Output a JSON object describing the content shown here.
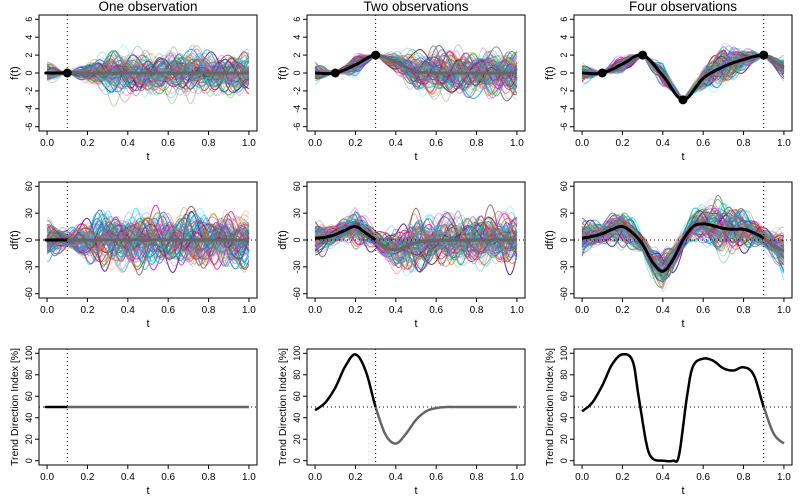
{
  "chart_data": [
    {
      "type": "line",
      "row": 1,
      "col": 1,
      "title": "One observation",
      "xlabel": "t",
      "ylabel": "f(t)",
      "xlim": [
        0,
        1
      ],
      "ylim": [
        -6,
        6
      ],
      "xticks": [
        "0.0",
        "0.2",
        "0.4",
        "0.6",
        "0.8",
        "1.0"
      ],
      "yticks": [
        "-6",
        "-4",
        "-2",
        "0",
        "2",
        "4",
        "6"
      ],
      "observations": {
        "x": [
          0.1
        ],
        "y": [
          0
        ]
      },
      "vline": 0.1,
      "mean": {
        "x": [
          0,
          0.1,
          1.0
        ],
        "y": [
          0,
          0,
          0
        ]
      },
      "samples": "many colored posterior sample paths"
    },
    {
      "type": "line",
      "row": 1,
      "col": 2,
      "title": "Two observations",
      "xlabel": "t",
      "ylabel": "f(t)",
      "xlim": [
        0,
        1
      ],
      "ylim": [
        -6,
        6
      ],
      "xticks": [
        "0.0",
        "0.2",
        "0.4",
        "0.6",
        "0.8",
        "1.0"
      ],
      "yticks": [
        "-6",
        "-4",
        "-2",
        "0",
        "2",
        "4",
        "6"
      ],
      "observations": {
        "x": [
          0.1,
          0.3
        ],
        "y": [
          0,
          2
        ]
      },
      "vline": 0.3,
      "mean": {
        "x": [
          0,
          0.1,
          0.2,
          0.3,
          0.4,
          0.5,
          0.6,
          1.0
        ],
        "y": [
          0,
          0,
          0.9,
          2,
          1.2,
          0.2,
          0,
          0
        ]
      },
      "samples": "many colored posterior sample paths"
    },
    {
      "type": "line",
      "row": 1,
      "col": 3,
      "title": "Four observations",
      "xlabel": "t",
      "ylabel": "f(t)",
      "xlim": [
        0,
        1
      ],
      "ylim": [
        -6,
        6
      ],
      "xticks": [
        "0.0",
        "0.2",
        "0.4",
        "0.6",
        "0.8",
        "1.0"
      ],
      "yticks": [
        "-6",
        "-4",
        "-2",
        "0",
        "2",
        "4",
        "6"
      ],
      "observations": {
        "x": [
          0.1,
          0.3,
          0.5,
          0.9
        ],
        "y": [
          0,
          2,
          -3,
          2
        ]
      },
      "vline": 0.9,
      "mean": {
        "x": [
          0,
          0.1,
          0.2,
          0.3,
          0.4,
          0.5,
          0.6,
          0.7,
          0.8,
          0.9,
          0.95,
          1.0
        ],
        "y": [
          0,
          0,
          1.0,
          2,
          -0.3,
          -3,
          -0.6,
          0.7,
          1.5,
          2,
          1.3,
          0.6
        ]
      },
      "samples": "many colored posterior sample paths"
    },
    {
      "type": "line",
      "row": 2,
      "col": 1,
      "xlabel": "t",
      "ylabel": "df(t)",
      "xlim": [
        0,
        1
      ],
      "ylim": [
        -60,
        60
      ],
      "xticks": [
        "0.0",
        "0.2",
        "0.4",
        "0.6",
        "0.8",
        "1.0"
      ],
      "yticks": [
        "-60",
        "-30",
        "0",
        "30",
        "60"
      ],
      "vline": 0.1,
      "zero_line": true,
      "mean": {
        "x": [
          0,
          0.1,
          1.0
        ],
        "y": [
          0,
          0,
          0
        ]
      },
      "samples": "many colored derivative sample paths"
    },
    {
      "type": "line",
      "row": 2,
      "col": 2,
      "xlabel": "t",
      "ylabel": "df(t)",
      "xlim": [
        0,
        1
      ],
      "ylim": [
        -60,
        60
      ],
      "xticks": [
        "0.0",
        "0.2",
        "0.4",
        "0.6",
        "0.8",
        "1.0"
      ],
      "yticks": [
        "-60",
        "-30",
        "0",
        "30",
        "60"
      ],
      "vline": 0.3,
      "zero_line": true,
      "mean": {
        "x": [
          0,
          0.05,
          0.1,
          0.15,
          0.2,
          0.25,
          0.3,
          0.35,
          0.4,
          0.45,
          0.5,
          0.6,
          1.0
        ],
        "y": [
          2,
          3,
          6,
          11,
          15,
          8,
          0,
          -8,
          -11,
          -7,
          -3,
          -0.5,
          0
        ]
      },
      "samples": "many colored derivative sample paths"
    },
    {
      "type": "line",
      "row": 2,
      "col": 3,
      "xlabel": "t",
      "ylabel": "df(t)",
      "xlim": [
        0,
        1
      ],
      "ylim": [
        -60,
        60
      ],
      "xticks": [
        "0.0",
        "0.2",
        "0.4",
        "0.6",
        "0.8",
        "1.0"
      ],
      "yticks": [
        "-60",
        "-30",
        "0",
        "30",
        "60"
      ],
      "vline": 0.9,
      "zero_line": true,
      "mean": {
        "x": [
          0,
          0.05,
          0.1,
          0.15,
          0.2,
          0.25,
          0.3,
          0.35,
          0.4,
          0.45,
          0.5,
          0.55,
          0.6,
          0.65,
          0.7,
          0.75,
          0.8,
          0.85,
          0.9,
          0.95,
          1.0
        ],
        "y": [
          2,
          4,
          7,
          12,
          15,
          8,
          -5,
          -25,
          -35,
          -22,
          0,
          15,
          18,
          16,
          13,
          12,
          12,
          8,
          2,
          -7,
          -12
        ]
      },
      "samples": "many colored derivative sample paths"
    },
    {
      "type": "line",
      "row": 3,
      "col": 1,
      "xlabel": "t",
      "ylabel": "Trend Direction Index [%]",
      "xlim": [
        0,
        1
      ],
      "ylim": [
        0,
        100
      ],
      "xticks": [
        "0.0",
        "0.2",
        "0.4",
        "0.6",
        "0.8",
        "1.0"
      ],
      "yticks": [
        "0",
        "20",
        "40",
        "60",
        "80",
        "100"
      ],
      "vline": 0.1,
      "hline": 50,
      "tdi": {
        "x": [
          0,
          0.1,
          1.0
        ],
        "y": [
          50,
          50,
          50
        ]
      }
    },
    {
      "type": "line",
      "row": 3,
      "col": 2,
      "xlabel": "t",
      "ylabel": "Trend Direction Index [%]",
      "xlim": [
        0,
        1
      ],
      "ylim": [
        0,
        100
      ],
      "xticks": [
        "0.0",
        "0.2",
        "0.4",
        "0.6",
        "0.8",
        "1.0"
      ],
      "yticks": [
        "0",
        "20",
        "40",
        "60",
        "80",
        "100"
      ],
      "vline": 0.3,
      "hline": 50,
      "tdi": {
        "x": [
          0,
          0.05,
          0.1,
          0.15,
          0.2,
          0.25,
          0.3,
          0.35,
          0.4,
          0.45,
          0.5,
          0.55,
          0.6,
          0.65,
          0.7,
          1.0
        ],
        "y": [
          47,
          54,
          68,
          88,
          99,
          84,
          50,
          24,
          16,
          25,
          38,
          46,
          49,
          50,
          50,
          50
        ]
      }
    },
    {
      "type": "line",
      "row": 3,
      "col": 3,
      "xlabel": "t",
      "ylabel": "Trend Direction Index [%]",
      "xlim": [
        0,
        1
      ],
      "ylim": [
        0,
        100
      ],
      "xticks": [
        "0.0",
        "0.2",
        "0.4",
        "0.6",
        "0.8",
        "1.0"
      ],
      "yticks": [
        "0",
        "20",
        "40",
        "60",
        "80",
        "100"
      ],
      "vline": 0.9,
      "hline": 50,
      "tdi": {
        "x": [
          0,
          0.05,
          0.1,
          0.15,
          0.2,
          0.25,
          0.28,
          0.32,
          0.35,
          0.4,
          0.45,
          0.48,
          0.52,
          0.55,
          0.6,
          0.65,
          0.7,
          0.75,
          0.8,
          0.85,
          0.9,
          0.95,
          1.0
        ],
        "y": [
          46,
          54,
          70,
          90,
          99,
          93,
          60,
          15,
          2,
          0,
          0,
          5,
          60,
          88,
          95,
          93,
          86,
          84,
          87,
          80,
          50,
          25,
          16
        ]
      }
    }
  ]
}
